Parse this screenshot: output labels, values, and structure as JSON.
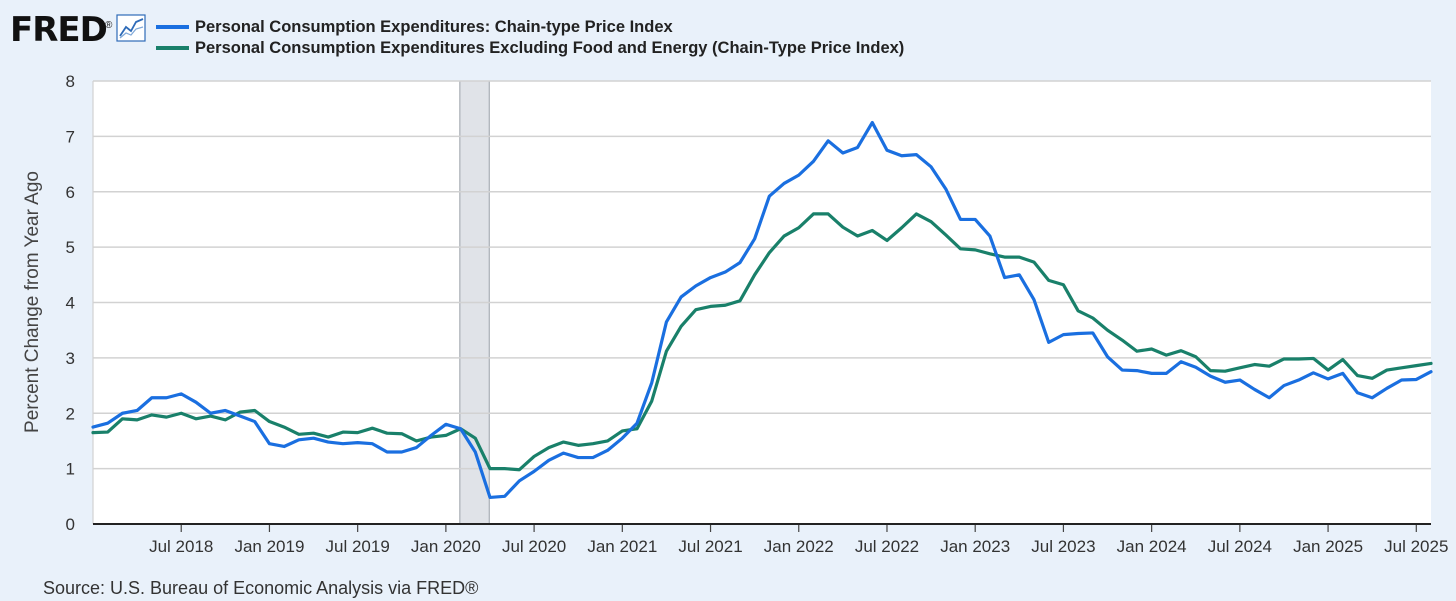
{
  "logo": {
    "text": "FRED",
    "mark": "®",
    "icon": "line-chart-icon"
  },
  "source": "Source: U.S. Bureau of Economic Analysis via FRED®",
  "colors": {
    "pce": "#1a6fe0",
    "core": "#19806a",
    "recession": "#e0e3e8",
    "grid": "#d2d2d2",
    "plot_bg": "#ffffff"
  },
  "chart_data": {
    "type": "line",
    "title": "",
    "ylabel": "Percent Change from Year Ago",
    "xlabel": "",
    "ylim": [
      0,
      8
    ],
    "yticks": [
      0,
      1,
      2,
      3,
      4,
      5,
      6,
      7,
      8
    ],
    "xlim": [
      "2018-01",
      "2025-08"
    ],
    "xticks": [
      {
        "date": "2018-07",
        "label": "Jul 2018"
      },
      {
        "date": "2019-01",
        "label": "Jan 2019"
      },
      {
        "date": "2019-07",
        "label": "Jul 2019"
      },
      {
        "date": "2020-01",
        "label": "Jan 2020"
      },
      {
        "date": "2020-07",
        "label": "Jul 2020"
      },
      {
        "date": "2021-01",
        "label": "Jan 2021"
      },
      {
        "date": "2021-07",
        "label": "Jul 2021"
      },
      {
        "date": "2022-01",
        "label": "Jan 2022"
      },
      {
        "date": "2022-07",
        "label": "Jul 2022"
      },
      {
        "date": "2023-01",
        "label": "Jan 2023"
      },
      {
        "date": "2023-07",
        "label": "Jul 2023"
      },
      {
        "date": "2024-01",
        "label": "Jan 2024"
      },
      {
        "date": "2024-07",
        "label": "Jul 2024"
      },
      {
        "date": "2025-01",
        "label": "Jan 2025"
      },
      {
        "date": "2025-07",
        "label": "Jul 2025"
      }
    ],
    "recession": {
      "start": "2020-02",
      "end": "2020-04"
    },
    "start_date": "2018-01",
    "series": [
      {
        "name": "Personal Consumption Expenditures: Chain-type Price Index",
        "color_key": "pce",
        "values": [
          1.75,
          1.82,
          2.0,
          2.05,
          2.28,
          2.28,
          2.35,
          2.2,
          2.0,
          2.05,
          1.95,
          1.85,
          1.45,
          1.4,
          1.52,
          1.55,
          1.48,
          1.45,
          1.47,
          1.45,
          1.3,
          1.3,
          1.38,
          1.6,
          1.8,
          1.72,
          1.3,
          0.48,
          0.5,
          0.78,
          0.95,
          1.15,
          1.28,
          1.2,
          1.2,
          1.33,
          1.55,
          1.82,
          2.55,
          3.65,
          4.1,
          4.3,
          4.45,
          4.55,
          4.72,
          5.15,
          5.92,
          6.15,
          6.3,
          6.55,
          6.92,
          6.7,
          6.8,
          7.25,
          6.75,
          6.65,
          6.67,
          6.45,
          6.05,
          5.5,
          5.5,
          5.2,
          4.45,
          4.5,
          4.05,
          3.28,
          3.42,
          3.44,
          3.45,
          3.02,
          2.78,
          2.77,
          2.72,
          2.72,
          2.93,
          2.83,
          2.67,
          2.56,
          2.6,
          2.43,
          2.28,
          2.5,
          2.6,
          2.73,
          2.62,
          2.72,
          2.37,
          2.28,
          2.45,
          2.6,
          2.61,
          2.75
        ]
      },
      {
        "name": "Personal Consumption Expenditures Excluding Food and Energy (Chain-Type Price Index)",
        "color_key": "core",
        "values": [
          1.65,
          1.66,
          1.9,
          1.88,
          1.97,
          1.93,
          2.0,
          1.9,
          1.95,
          1.88,
          2.02,
          2.05,
          1.85,
          1.75,
          1.62,
          1.64,
          1.57,
          1.66,
          1.65,
          1.73,
          1.64,
          1.63,
          1.5,
          1.57,
          1.6,
          1.72,
          1.55,
          1.0,
          1.0,
          0.98,
          1.22,
          1.38,
          1.48,
          1.42,
          1.45,
          1.5,
          1.68,
          1.72,
          2.22,
          3.12,
          3.57,
          3.87,
          3.93,
          3.95,
          4.03,
          4.5,
          4.9,
          5.2,
          5.35,
          5.6,
          5.6,
          5.36,
          5.2,
          5.3,
          5.12,
          5.35,
          5.6,
          5.46,
          5.22,
          4.97,
          4.95,
          4.88,
          4.82,
          4.82,
          4.73,
          4.4,
          4.32,
          3.85,
          3.72,
          3.5,
          3.32,
          3.12,
          3.16,
          3.05,
          3.13,
          3.02,
          2.77,
          2.76,
          2.82,
          2.88,
          2.85,
          2.98,
          2.98,
          2.99,
          2.78,
          2.97,
          2.68,
          2.63,
          2.78,
          2.82,
          2.86,
          2.9
        ]
      }
    ]
  }
}
